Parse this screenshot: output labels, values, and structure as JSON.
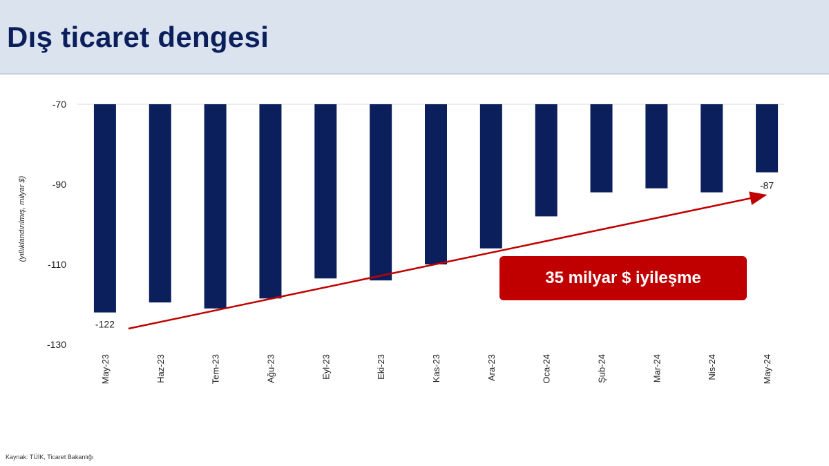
{
  "header": {
    "title": "Dış ticaret dengesi"
  },
  "source_note": "Kaynak: TÜİK, Ticaret Bakanlığı",
  "callout_text": "35 milyar $ iyileşme",
  "colors": {
    "bar": "#0b1f5c",
    "arrow": "#c00000",
    "header_bg": "#dbe3ef"
  },
  "chart_data": {
    "type": "bar",
    "title": "",
    "xlabel": "",
    "ylabel": "(yıllıklandırılmış, milyar $)",
    "ylim": [
      -130,
      -70
    ],
    "yticks": [
      -70,
      -90,
      -110,
      -130
    ],
    "grid": false,
    "categories": [
      "May-23",
      "Haz-23",
      "Tem-23",
      "Ağu-23",
      "Eyl-23",
      "Eki-23",
      "Kas-23",
      "Ara-23",
      "Oca-24",
      "Şub-24",
      "Mar-24",
      "Nis-24",
      "May-24"
    ],
    "values": [
      -122,
      -119.5,
      -121,
      -118.5,
      -113.5,
      -114,
      -110,
      -106,
      -98,
      -92,
      -91,
      -92,
      -87
    ],
    "data_labels": [
      {
        "category": "May-23",
        "text": "-122"
      },
      {
        "category": "May-24",
        "text": "-87"
      }
    ],
    "trend_arrow": {
      "from_category": "May-23",
      "from_value": -125,
      "to_category": "May-24",
      "to_value": -92
    }
  }
}
